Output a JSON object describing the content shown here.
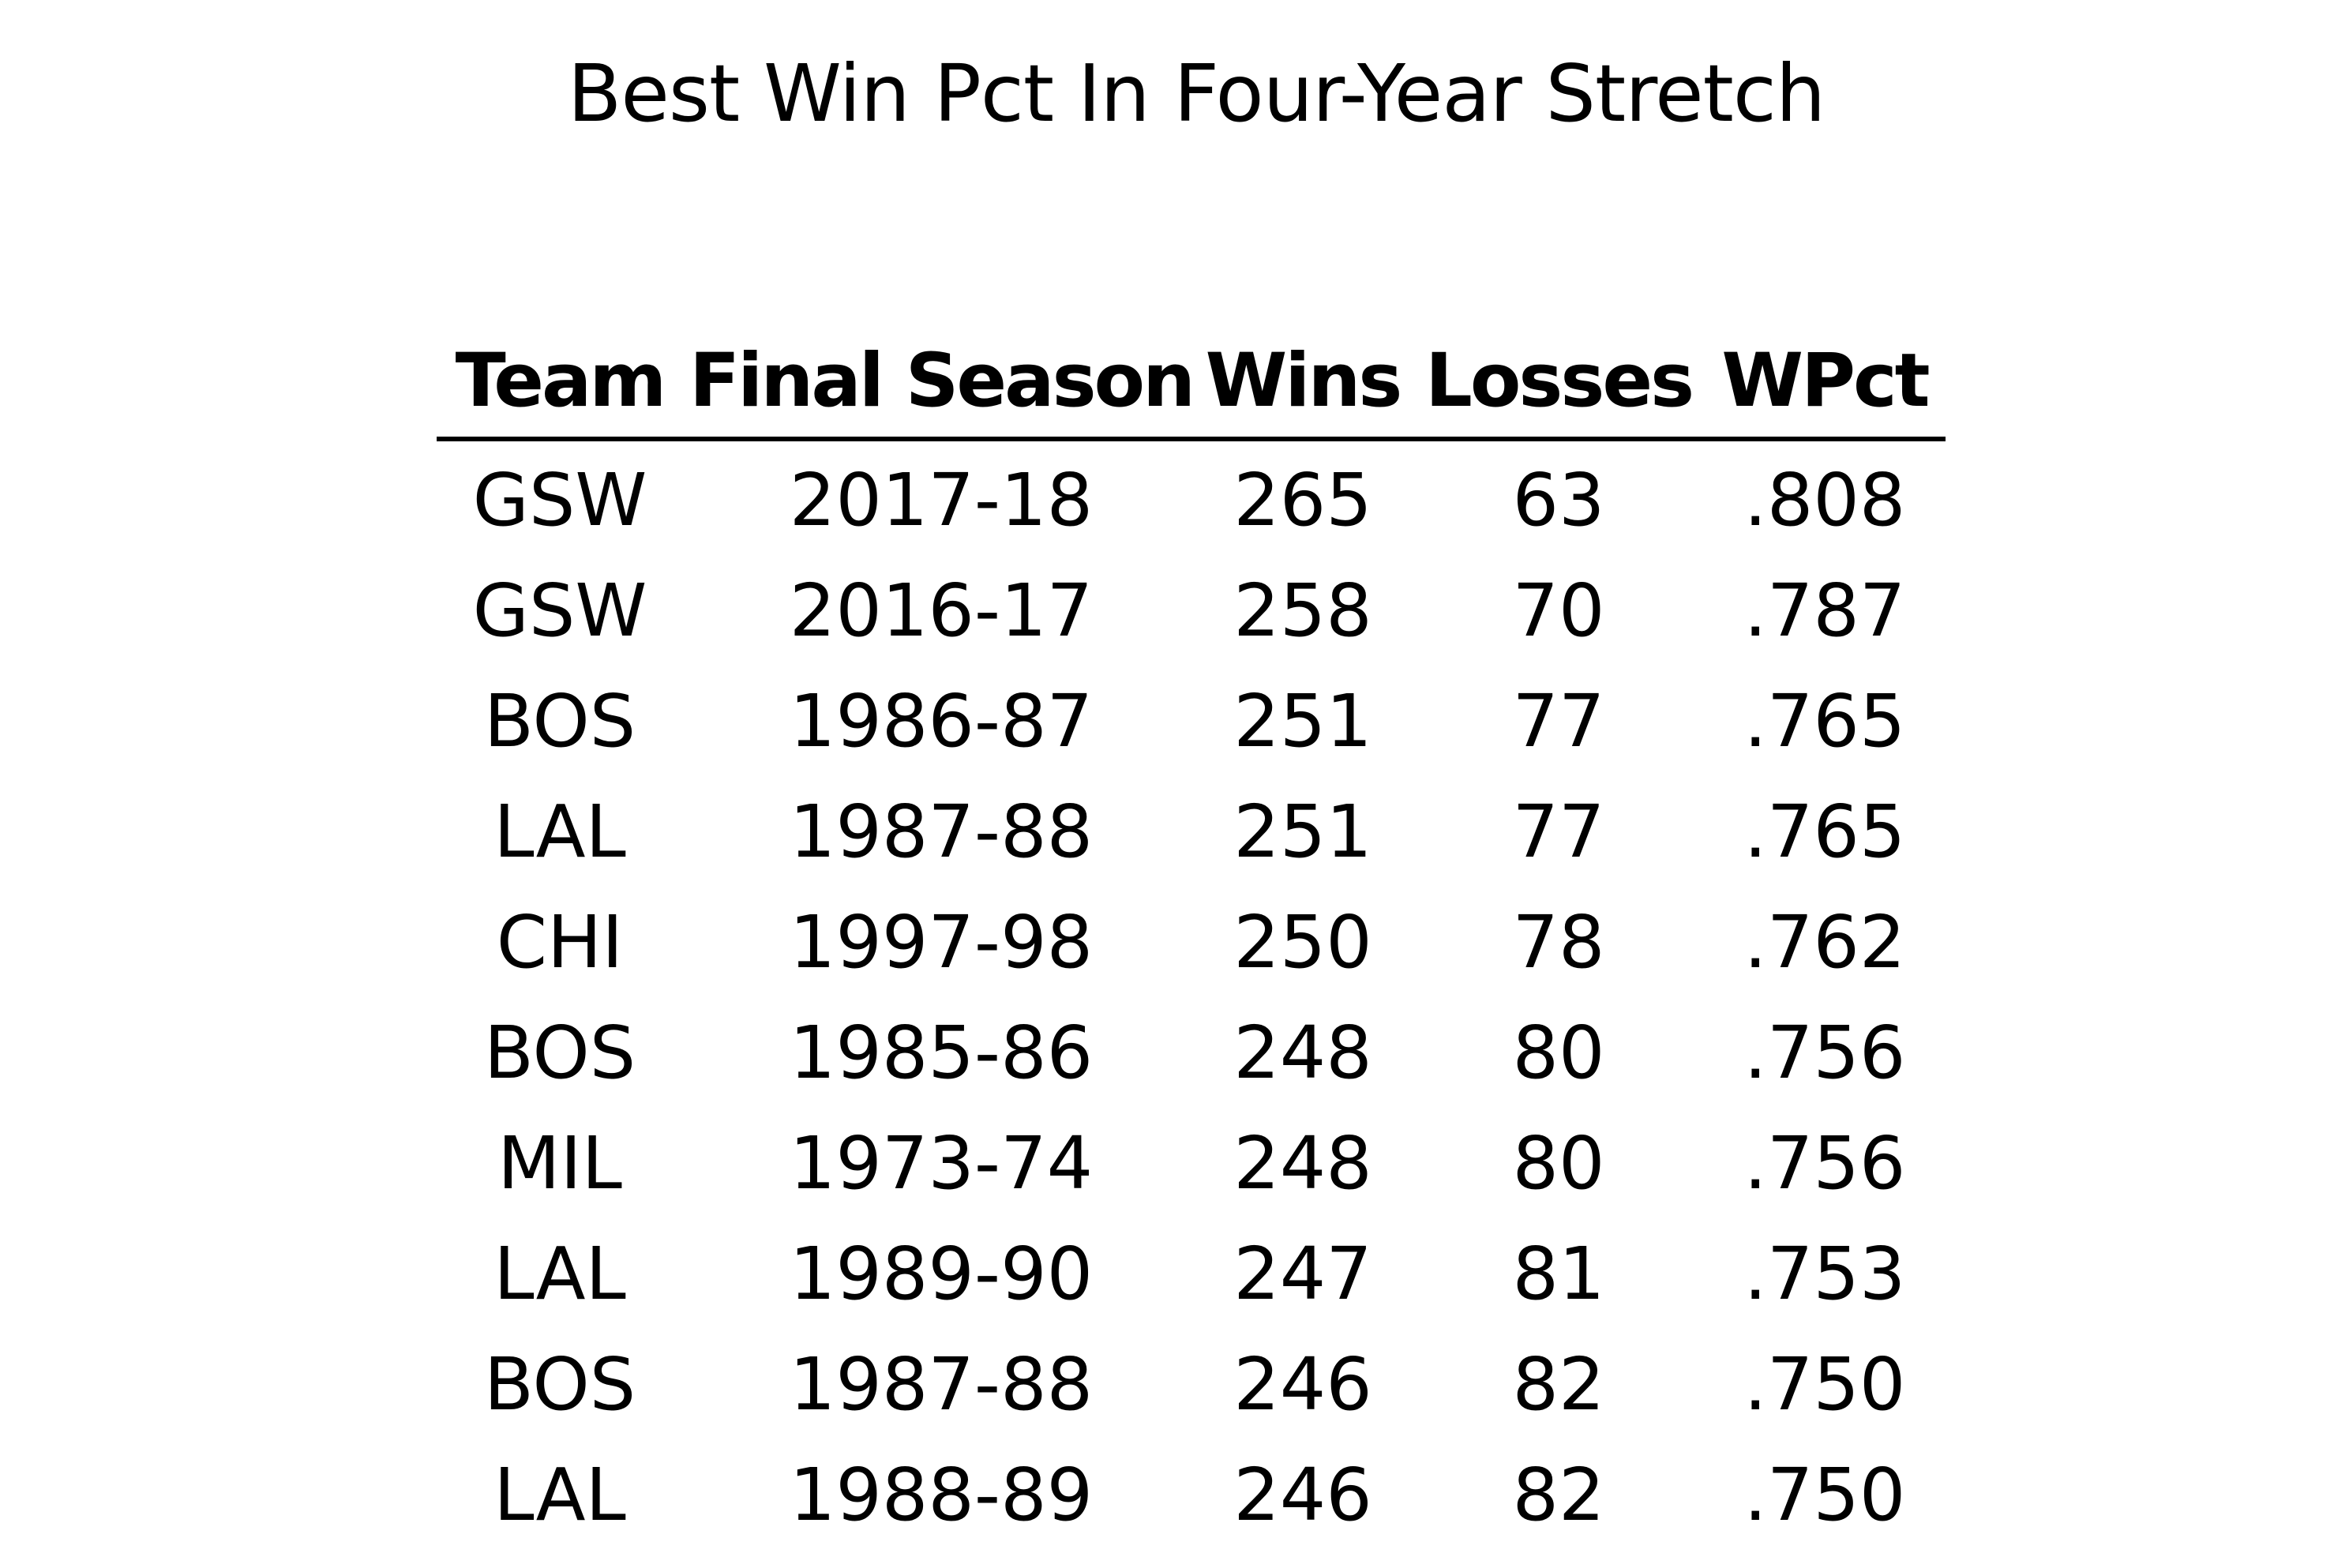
{
  "title": "Best Win Pct In Four-Year Stretch",
  "columns": [
    "Team",
    "Final Season",
    "Wins",
    "Losses",
    "WPct"
  ],
  "rows": [
    [
      "GSW",
      "2017-18",
      "265",
      "63",
      ".808"
    ],
    [
      "GSW",
      "2016-17",
      "258",
      "70",
      ".787"
    ],
    [
      "BOS",
      "1986-87",
      "251",
      "77",
      ".765"
    ],
    [
      "LAL",
      "1987-88",
      "251",
      "77",
      ".765"
    ],
    [
      "CHI",
      "1997-98",
      "250",
      "78",
      ".762"
    ],
    [
      "BOS",
      "1985-86",
      "248",
      "80",
      ".756"
    ],
    [
      "MIL",
      "1973-74",
      "248",
      "80",
      ".756"
    ],
    [
      "LAL",
      "1989-90",
      "247",
      "81",
      ".753"
    ],
    [
      "BOS",
      "1987-88",
      "246",
      "82",
      ".750"
    ],
    [
      "LAL",
      "1988-89",
      "246",
      "82",
      ".750"
    ]
  ]
}
